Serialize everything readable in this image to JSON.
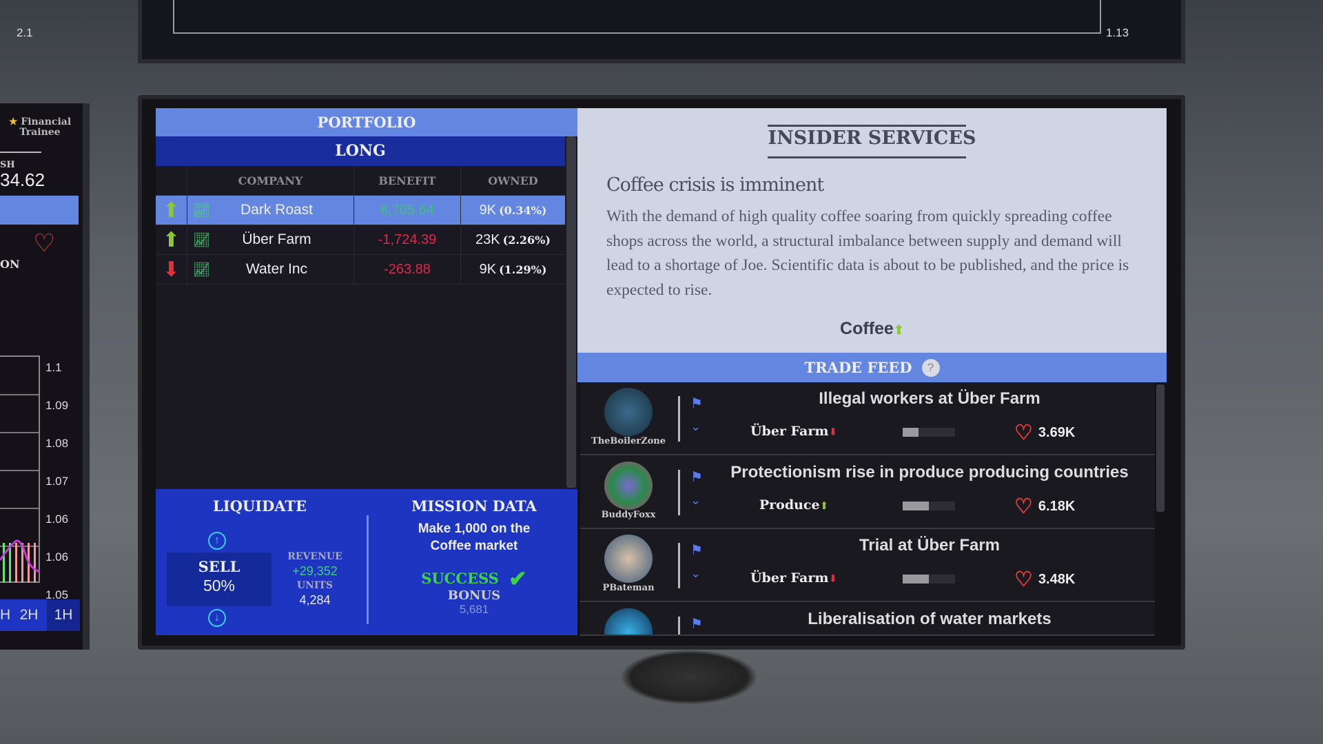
{
  "top_chart": {
    "left_label": "2.1",
    "right_label": "1.13"
  },
  "left_monitor": {
    "rank": "Financial Trainee",
    "cash_label": "SH",
    "cash_value": "34.62",
    "section": "ON",
    "y_ticks": [
      "1.1",
      "1.09",
      "1.08",
      "1.07",
      "1.06",
      "1.06",
      "1.05"
    ],
    "timeframes": [
      "H",
      "2H",
      "1H"
    ]
  },
  "portfolio": {
    "title": "PORTFOLIO",
    "tab": "LONG",
    "columns": [
      "COMPANY",
      "BENEFIT",
      "OWNED"
    ],
    "rows": [
      {
        "trend": "up",
        "company": "Dark Roast",
        "benefit": "8,705.64",
        "benefit_color": "#3fc07a",
        "owned": "9K",
        "pct": "(0.34%)",
        "selected": true
      },
      {
        "trend": "up",
        "company": "Über Farm",
        "benefit": "-1,724.39",
        "benefit_color": "#e0284a",
        "owned": "23K",
        "pct": "(2.26%)"
      },
      {
        "trend": "down",
        "company": "Water Inc",
        "benefit": "-263.88",
        "benefit_color": "#e0284a",
        "owned": "9K",
        "pct": "(1.29%)"
      }
    ]
  },
  "liquidate": {
    "title": "LIQUIDATE",
    "sell_label": "SELL",
    "sell_pct": "50%",
    "revenue_label": "REVENUE",
    "revenue": "+29,352",
    "units_label": "UNITS",
    "units": "4,284"
  },
  "mission": {
    "title": "MISSION DATA",
    "objective": "Make 1,000 on the Coffee market",
    "status": "SUCCESS",
    "bonus_label": "BONUS",
    "bonus": "5,681"
  },
  "insider": {
    "title": "INSIDER SERVICES",
    "headline": "Coffee crisis is imminent",
    "body": "With the demand of high quality coffee soaring from quickly spreading coffee shops across the world, a structural imbalance between supply and demand will lead to a shortage of Joe. Scientific data is about to be published, and the price is expected to rise.",
    "market": "Coffee",
    "market_trend": "up"
  },
  "trade_feed": {
    "title": "TRADE FEED",
    "help": "?",
    "items": [
      {
        "user": "TheBoilerZone",
        "title": "Illegal workers at Über Farm",
        "company": "Über Farm",
        "trend": "down",
        "impact": 0.3,
        "likes": "3.69K"
      },
      {
        "user": "BuddyFoxx",
        "title": "Protectionism rise in produce producing countries",
        "company": "Produce",
        "trend": "up",
        "impact": 0.5,
        "likes": "6.18K"
      },
      {
        "user": "PBateman",
        "title": "Trial at Über Farm",
        "company": "Über Farm",
        "trend": "down",
        "impact": 0.5,
        "likes": "3.48K"
      },
      {
        "user": "",
        "title": "Liberalisation of water markets"
      }
    ]
  },
  "colors": {
    "accent": "#6386e0",
    "deep_blue": "#1d35c0",
    "success": "#3ed24a",
    "up": "#8cc832",
    "down": "#e0303a"
  }
}
